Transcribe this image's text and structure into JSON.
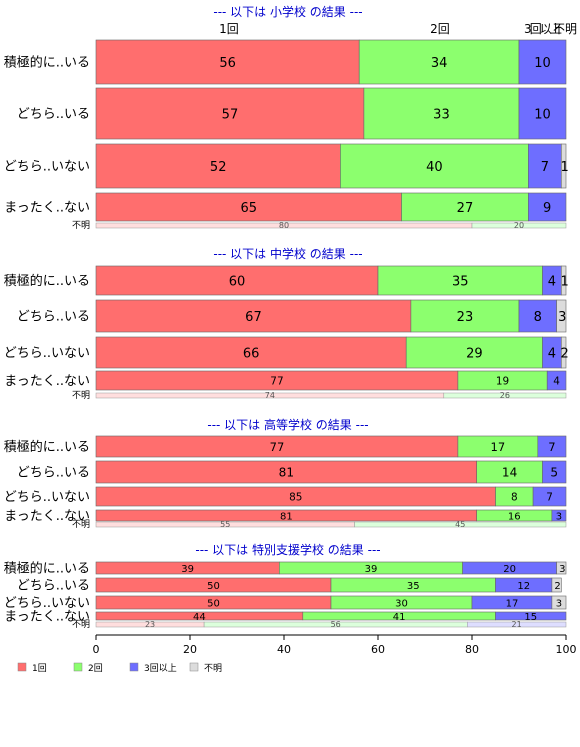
{
  "chart_data": {
    "type": "bar",
    "stacked": "horizontal-100",
    "series_names": [
      "1回",
      "2回",
      "3回以上",
      "不明"
    ],
    "colors": {
      "s1": "#ff6e6e",
      "s2": "#8cff6e",
      "s3": "#6e6eff",
      "s4": "#dcdcdc",
      "title": "#0000cc"
    },
    "panels": [
      {
        "title": "--- 以下は 小学校 の結果 ---",
        "column_labels": [
          "1回",
          "2回",
          "3回以上",
          "不明"
        ],
        "rows": [
          {
            "label": "積極的に..いる",
            "values": [
              56,
              34,
              10,
              0
            ]
          },
          {
            "label": "どちら..いる",
            "values": [
              57,
              33,
              10,
              0
            ]
          },
          {
            "label": "どちら..いない",
            "values": [
              52,
              40,
              7,
              1
            ]
          },
          {
            "label": "まったく..ない",
            "values": [
              65,
              27,
              9,
              0
            ]
          }
        ],
        "unknown": {
          "label": "不明",
          "values": [
            80,
            20,
            0,
            0
          ]
        }
      },
      {
        "title": "--- 以下は 中学校 の結果 ---",
        "rows": [
          {
            "label": "積極的に..いる",
            "values": [
              60,
              35,
              4,
              1
            ]
          },
          {
            "label": "どちら..いる",
            "values": [
              67,
              23,
              8,
              3
            ]
          },
          {
            "label": "どちら..いない",
            "values": [
              66,
              29,
              4,
              2
            ]
          },
          {
            "label": "まったく..ない",
            "values": [
              77,
              19,
              4,
              0
            ]
          }
        ],
        "unknown": {
          "label": "不明",
          "values": [
            74,
            26,
            0,
            0
          ]
        }
      },
      {
        "title": "--- 以下は 高等学校 の結果 ---",
        "rows": [
          {
            "label": "積極的に..いる",
            "values": [
              77,
              17,
              7,
              0
            ]
          },
          {
            "label": "どちら..いる",
            "values": [
              81,
              14,
              5,
              0
            ]
          },
          {
            "label": "どちら..いない",
            "values": [
              85,
              8,
              7,
              0
            ]
          },
          {
            "label": "まったく..ない",
            "values": [
              81,
              16,
              3,
              0
            ]
          }
        ],
        "unknown": {
          "label": "不明",
          "values": [
            55,
            45,
            0,
            0
          ]
        }
      },
      {
        "title": "--- 以下は 特別支援学校 の結果 ---",
        "rows": [
          {
            "label": "積極的に..いる",
            "values": [
              39,
              39,
              20,
              3
            ]
          },
          {
            "label": "どちら..いる",
            "values": [
              50,
              35,
              12,
              2
            ]
          },
          {
            "label": "どちら..いない",
            "values": [
              50,
              30,
              17,
              3
            ]
          },
          {
            "label": "まったく..ない",
            "values": [
              44,
              41,
              15,
              0
            ]
          }
        ],
        "unknown": {
          "label": "不明",
          "values": [
            23,
            56,
            21,
            0
          ]
        }
      }
    ],
    "x_ticks": [
      0,
      20,
      40,
      60,
      80,
      100
    ],
    "xlim": [
      0,
      100
    ],
    "legend_position": "bottom-left"
  }
}
